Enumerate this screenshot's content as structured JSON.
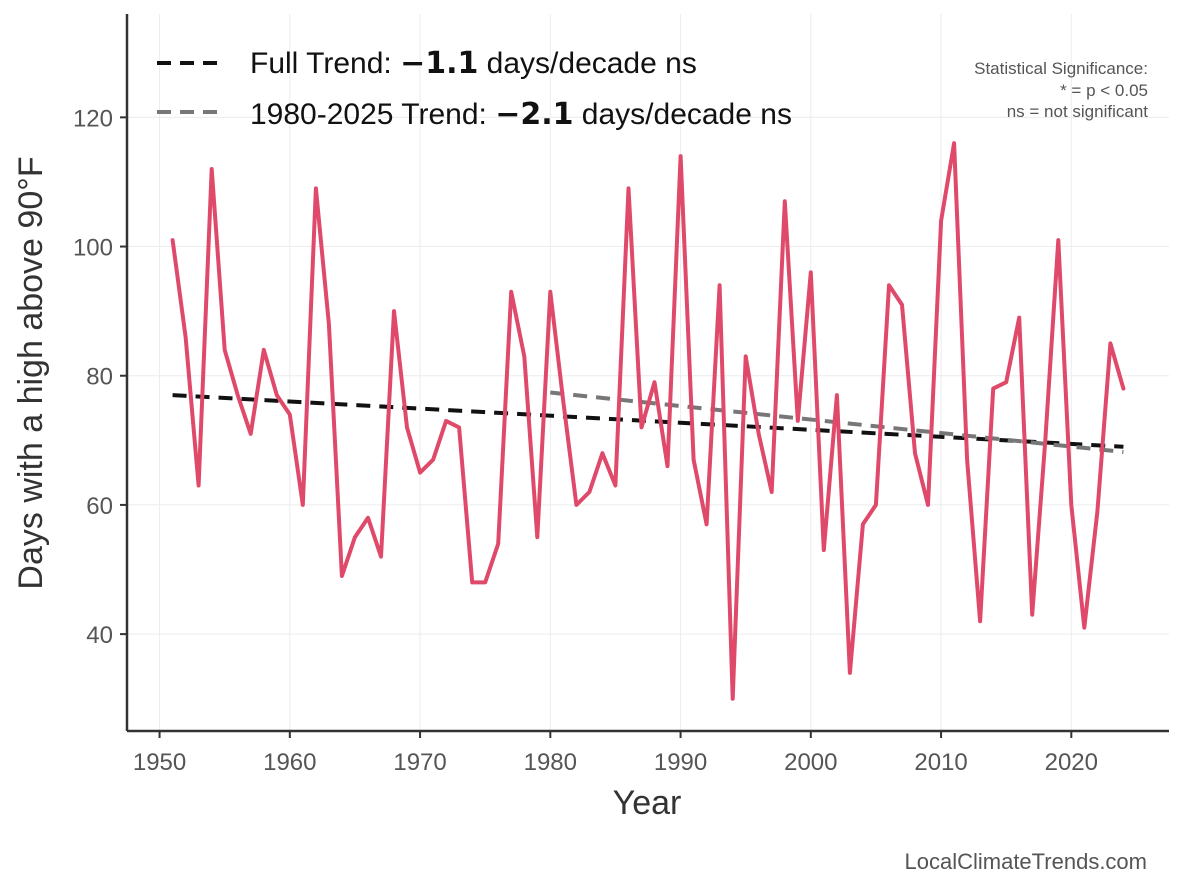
{
  "chart_data": {
    "type": "line",
    "xlabel": "Year",
    "ylabel": "Days with a high above 90°F",
    "xlim": [
      1947.5,
      2027.5
    ],
    "ylim": [
      25,
      136
    ],
    "x_ticks": [
      1950,
      1960,
      1970,
      1980,
      1990,
      2000,
      2010,
      2020
    ],
    "y_ticks": [
      40,
      60,
      80,
      100,
      120
    ],
    "grid": true,
    "series": [
      {
        "name": "Days above 90°F",
        "color": "#e04a6a",
        "x": [
          1951,
          1952,
          1953,
          1954,
          1955,
          1956,
          1957,
          1958,
          1959,
          1960,
          1961,
          1962,
          1963,
          1964,
          1965,
          1966,
          1967,
          1968,
          1969,
          1970,
          1971,
          1972,
          1973,
          1974,
          1975,
          1976,
          1977,
          1978,
          1979,
          1980,
          1981,
          1982,
          1983,
          1984,
          1985,
          1986,
          1987,
          1988,
          1989,
          1990,
          1991,
          1992,
          1993,
          1994,
          1995,
          1996,
          1997,
          1998,
          1999,
          2000,
          2001,
          2002,
          2003,
          2004,
          2005,
          2006,
          2007,
          2008,
          2009,
          2010,
          2011,
          2012,
          2013,
          2014,
          2015,
          2016,
          2017,
          2018,
          2019,
          2020,
          2021,
          2022,
          2023,
          2024
        ],
        "values": [
          101,
          86,
          63,
          112,
          84,
          77,
          71,
          84,
          77,
          74,
          60,
          109,
          88,
          49,
          55,
          58,
          52,
          90,
          72,
          65,
          67,
          73,
          72,
          48,
          48,
          54,
          93,
          83,
          55,
          93,
          76,
          60,
          62,
          68,
          63,
          109,
          72,
          79,
          66,
          114,
          67,
          57,
          94,
          30,
          83,
          71,
          62,
          107,
          73,
          96,
          53,
          77,
          34,
          57,
          60,
          94,
          91,
          68,
          60,
          104,
          116,
          67,
          42,
          78,
          79,
          89,
          43,
          70,
          101,
          60,
          41,
          59,
          85,
          78
        ]
      }
    ],
    "trends": [
      {
        "name": "Full Trend",
        "color": "#111111",
        "x_start": 1951,
        "y_start": 77.0,
        "x_end": 2024,
        "y_end": 69.0
      },
      {
        "name": "1980-2025 Trend",
        "color": "#777777",
        "x_start": 1980,
        "y_start": 77.4,
        "x_end": 2024,
        "y_end": 68.2
      }
    ],
    "legend": [
      {
        "prefix": "Full Trend: ",
        "value": "−1.1",
        "suffix": " days/decade ns",
        "color": "#111111"
      },
      {
        "prefix": "1980-2025 Trend: ",
        "value": "−2.1",
        "suffix": " days/decade ns",
        "color": "#777777"
      }
    ],
    "significance_note": [
      "Statistical Significance:",
      "* = p < 0.05",
      "ns = not significant"
    ],
    "legend_position": "top-left"
  },
  "credit": "LocalClimateTrends.com"
}
